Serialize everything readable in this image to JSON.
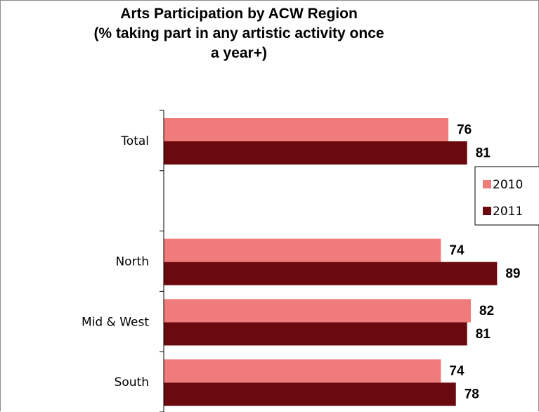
{
  "chart_data": {
    "type": "bar",
    "orientation": "horizontal",
    "title": "Arts Participation by ACW Region",
    "subtitle": "(% taking part in any artistic activity once a year+)",
    "categories": [
      "Total",
      null,
      "North",
      "Mid & West",
      "South"
    ],
    "series": [
      {
        "name": "2010",
        "color": "#f07b7b",
        "values": [
          76,
          null,
          74,
          82,
          74
        ]
      },
      {
        "name": "2011",
        "color": "#6b0a0e",
        "values": [
          81,
          null,
          89,
          81,
          78
        ]
      }
    ],
    "xlim": [
      0,
      100
    ],
    "legend": "right"
  }
}
